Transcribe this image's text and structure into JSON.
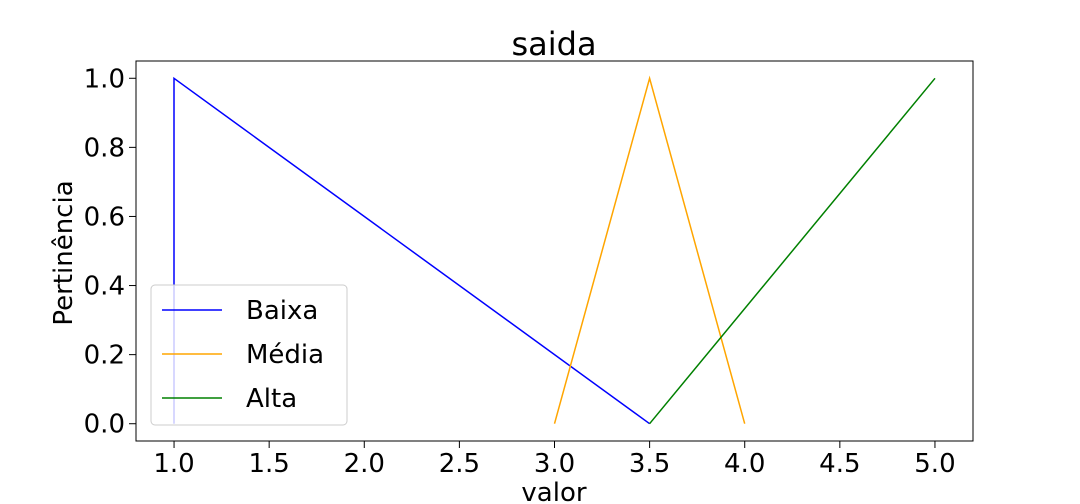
{
  "chart_data": {
    "type": "line",
    "title": "saida",
    "xlabel": "valor",
    "ylabel": "Pertinência",
    "xlim": [
      0.8,
      5.2
    ],
    "ylim": [
      -0.05,
      1.05
    ],
    "xticks": [
      "1.0",
      "1.5",
      "2.0",
      "2.5",
      "3.0",
      "3.5",
      "4.0",
      "4.5",
      "5.0"
    ],
    "yticks": [
      "0.0",
      "0.2",
      "0.4",
      "0.6",
      "0.8",
      "1.0"
    ],
    "grid": false,
    "legend_position": "lower-left",
    "series": [
      {
        "name": "Baixa",
        "color": "#0000ff",
        "x": [
          1.0,
          1.0,
          3.5
        ],
        "y": [
          0.0,
          1.0,
          0.0
        ]
      },
      {
        "name": "Média",
        "color": "#ffa500",
        "x": [
          3.0,
          3.5,
          4.0
        ],
        "y": [
          0.0,
          1.0,
          0.0
        ]
      },
      {
        "name": "Alta",
        "color": "#008000",
        "x": [
          3.5,
          5.0
        ],
        "y": [
          0.0,
          1.0
        ]
      }
    ]
  }
}
